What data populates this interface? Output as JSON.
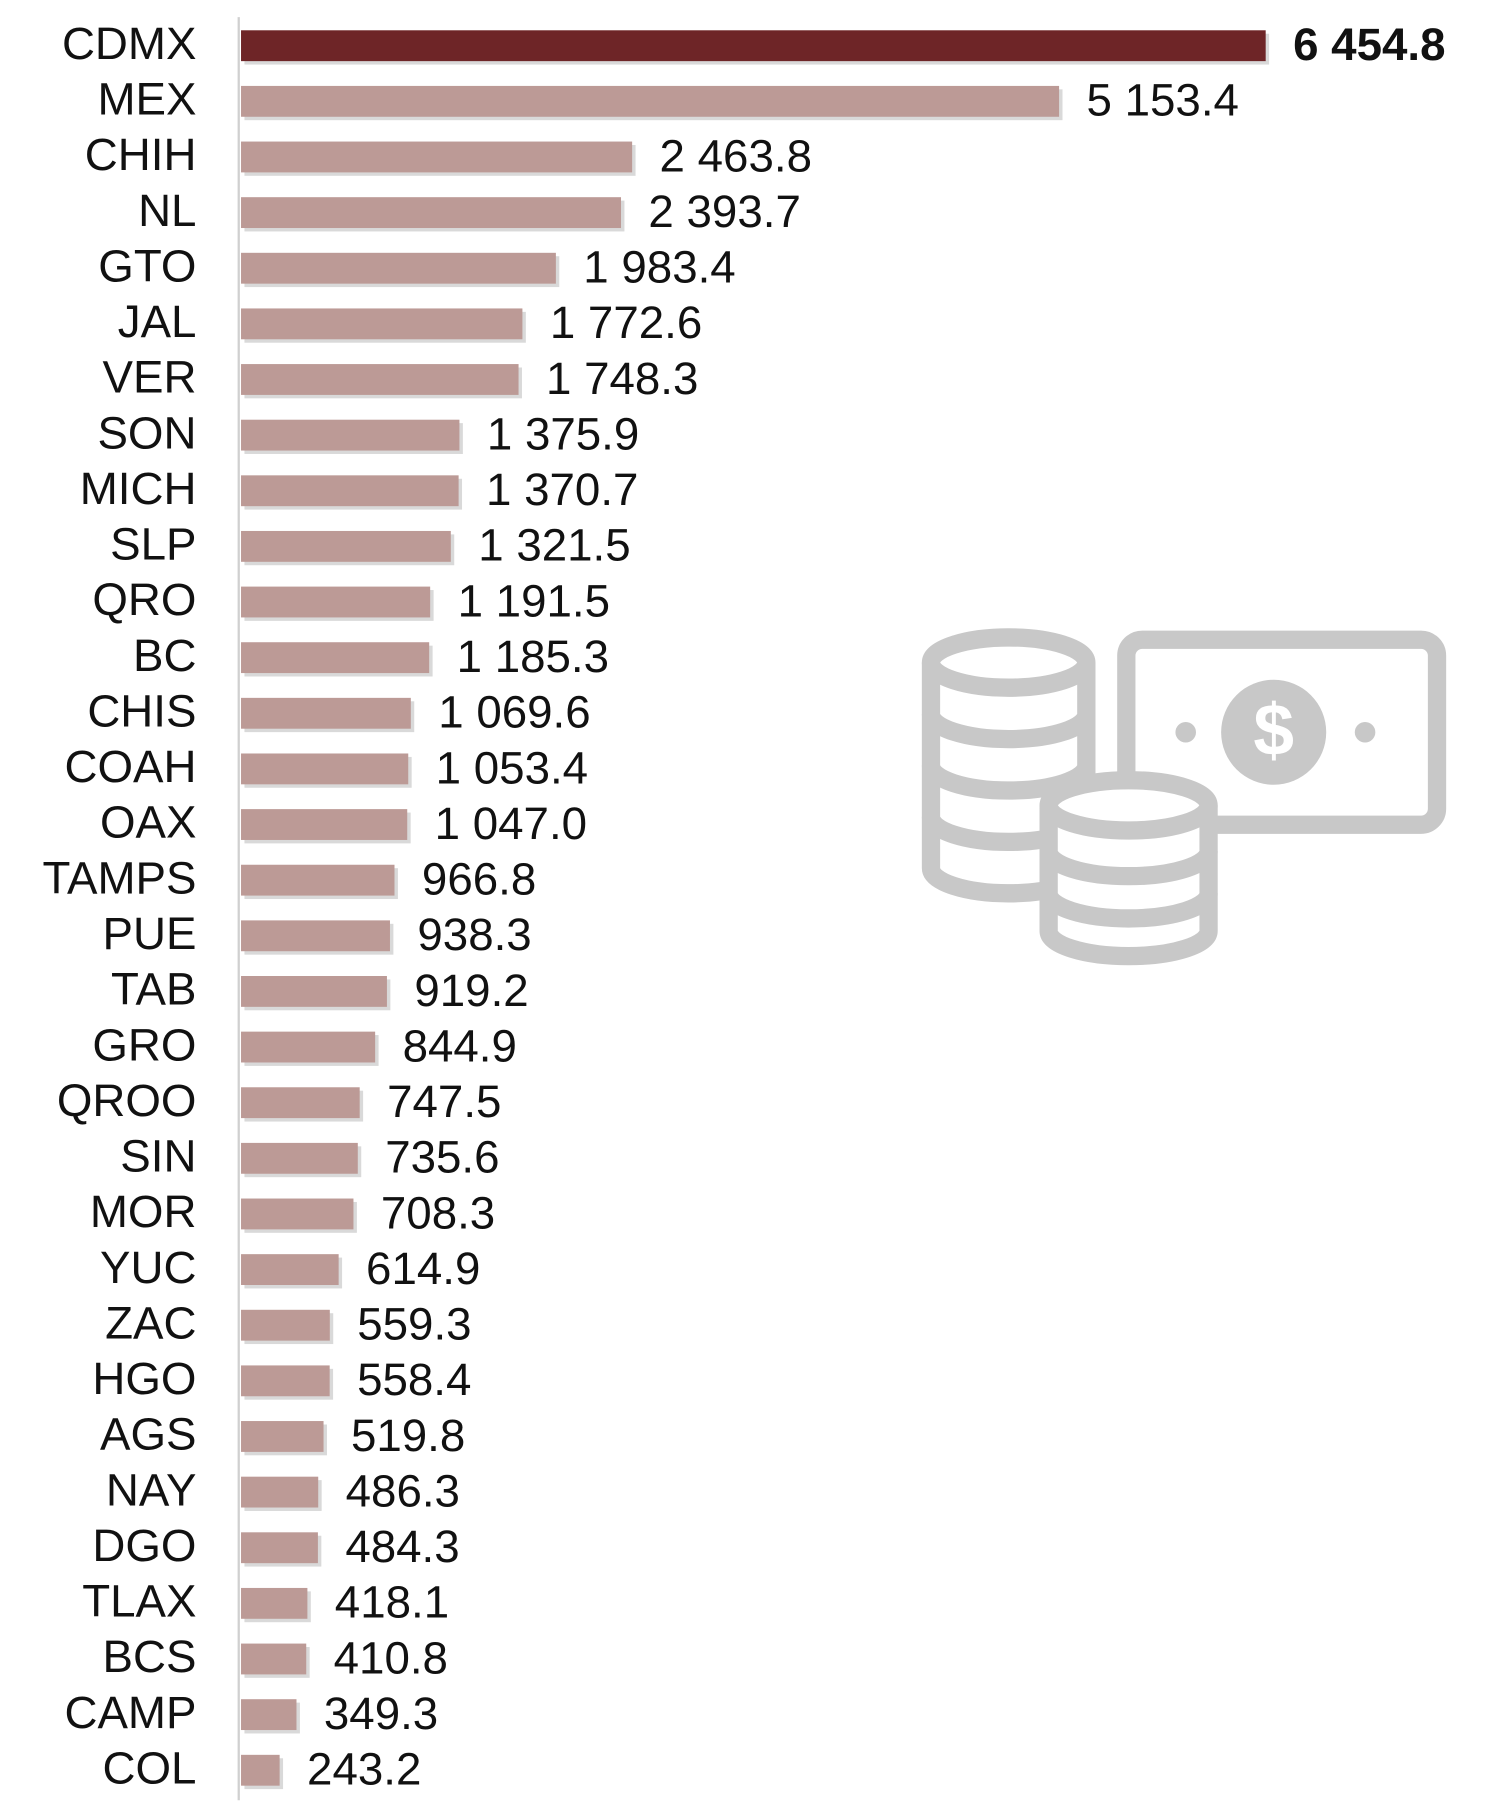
{
  "chart_data": {
    "type": "bar",
    "orientation": "horizontal",
    "categories": [
      "CDMX",
      "MEX",
      "CHIH",
      "NL",
      "GTO",
      "JAL",
      "VER",
      "SON",
      "MICH",
      "SLP",
      "QRO",
      "BC",
      "CHIS",
      "COAH",
      "OAX",
      "TAMPS",
      "PUE",
      "TAB",
      "GRO",
      "QROO",
      "SIN",
      "MOR",
      "YUC",
      "ZAC",
      "HGO",
      "AGS",
      "NAY",
      "DGO",
      "TLAX",
      "BCS",
      "CAMP",
      "COL"
    ],
    "values": [
      6454.8,
      5153.4,
      2463.8,
      2393.7,
      1983.4,
      1772.6,
      1748.3,
      1375.9,
      1370.7,
      1321.5,
      1191.5,
      1185.3,
      1069.6,
      1053.4,
      1047.0,
      966.8,
      938.3,
      919.2,
      844.9,
      747.5,
      735.6,
      708.3,
      614.9,
      559.3,
      558.4,
      519.8,
      486.3,
      484.3,
      418.1,
      410.8,
      349.3,
      243.2
    ],
    "value_labels": [
      "6 454.8",
      "5 153.4",
      "2 463.8",
      "2 393.7",
      "1 983.4",
      "1 772.6",
      "1 748.3",
      "1 375.9",
      "1 370.7",
      "1 321.5",
      "1 191.5",
      "1 185.3",
      "1 069.6",
      "1 053.4",
      "1 047.0",
      "966.8",
      "938.3",
      "919.2",
      "844.9",
      "747.5",
      "735.6",
      "708.3",
      "614.9",
      "559.3",
      "558.4",
      "519.8",
      "486.3",
      "484.3",
      "418.1",
      "410.8",
      "349.3",
      "243.2"
    ],
    "colors": [
      "#6e2527",
      "#bc9a96",
      "#bc9a96",
      "#bc9a96",
      "#bc9a96",
      "#bc9a96",
      "#bc9a96",
      "#bc9a96",
      "#bc9a96",
      "#bc9a96",
      "#bc9a96",
      "#bc9a96",
      "#bc9a96",
      "#bc9a96",
      "#bc9a96",
      "#bc9a96",
      "#bc9a96",
      "#bc9a96",
      "#bc9a96",
      "#bc9a96",
      "#bc9a96",
      "#bc9a96",
      "#bc9a96",
      "#bc9a96",
      "#bc9a96",
      "#bc9a96",
      "#bc9a96",
      "#bc9a96",
      "#bc9a96",
      "#bc9a96",
      "#bc9a96",
      "#bc9a96"
    ]
  }
}
